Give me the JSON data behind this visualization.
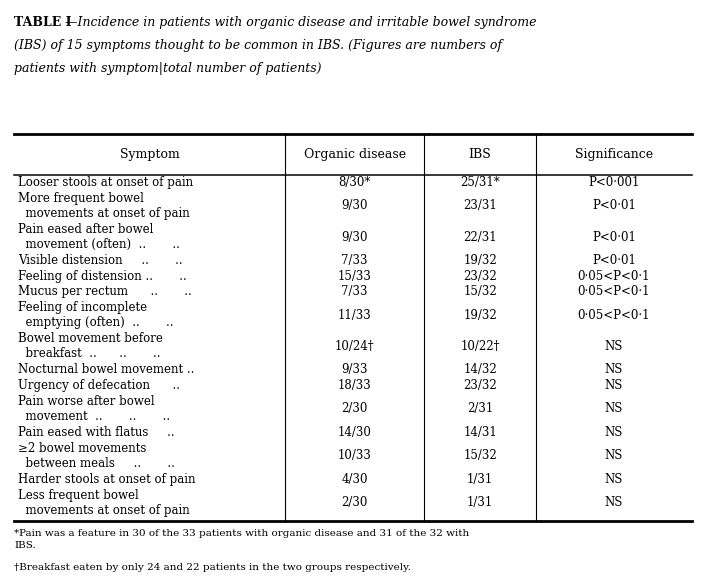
{
  "title_bold": "TABLE I",
  "title_italic_line1": "—Incidence in patients with organic disease and irritable bowel syndrome",
  "title_italic_line2": "(IBS) of 15 symptoms thought to be common in IBS. (Figures are numbers of",
  "title_italic_line3": "patients with symptom|total number of patients)",
  "col_headers": [
    "Symptom",
    "Organic disease",
    "IBS",
    "Significance"
  ],
  "rows": [
    [
      "Looser stools at onset of pain",
      "8/30*",
      "25/31*",
      "P<0·001"
    ],
    [
      "More frequent bowel\n  movements at onset of pain",
      "9/30",
      "23/31",
      "P<0·01"
    ],
    [
      "Pain eased after bowel\n  movement (often)  ..       ..",
      "9/30",
      "22/31",
      "P<0·01"
    ],
    [
      "Visible distension     ..       ..",
      "7/33",
      "19/32",
      "P<0·01"
    ],
    [
      "Feeling of distension ..       ..",
      "15/33",
      "23/32",
      "0·05<P<0·1"
    ],
    [
      "Mucus per rectum      ..       ..",
      "7/33",
      "15/32",
      "0·05<P<0·1"
    ],
    [
      "Feeling of incomplete\n  emptying (often)  ..       ..",
      "11/33",
      "19/32",
      "0·05<P<0·1"
    ],
    [
      "Bowel movement before\n  breakfast  ..      ..       ..",
      "10/24†",
      "10/22†",
      "NS"
    ],
    [
      "Nocturnal bowel movement ..",
      "9/33",
      "14/32",
      "NS"
    ],
    [
      "Urgency of defecation      ..",
      "18/33",
      "23/32",
      "NS"
    ],
    [
      "Pain worse after bowel\n  movement  ..       ..       ..",
      "2/30",
      "2/31",
      "NS"
    ],
    [
      "Pain eased with flatus     ..",
      "14/30",
      "14/31",
      "NS"
    ],
    [
      "≥2 bowel movements\n  between meals     ..       ..",
      "10/33",
      "15/32",
      "NS"
    ],
    [
      "Harder stools at onset of pain",
      "4/30",
      "1/31",
      "NS"
    ],
    [
      "Less frequent bowel\n  movements at onset of pain",
      "2/30",
      "1/31",
      "NS"
    ]
  ],
  "footnote1": "*Pain was a feature in 30 of the 33 patients with organic disease and 31 of the 32 with\nIBS.",
  "footnote2": "†Breakfast eaten by only 24 and 22 patients in the two groups respectively.",
  "bg_color": "#ffffff",
  "text_color": "#000000",
  "font_size": 8.5,
  "header_font_size": 9.0,
  "title_font_size": 9.0
}
